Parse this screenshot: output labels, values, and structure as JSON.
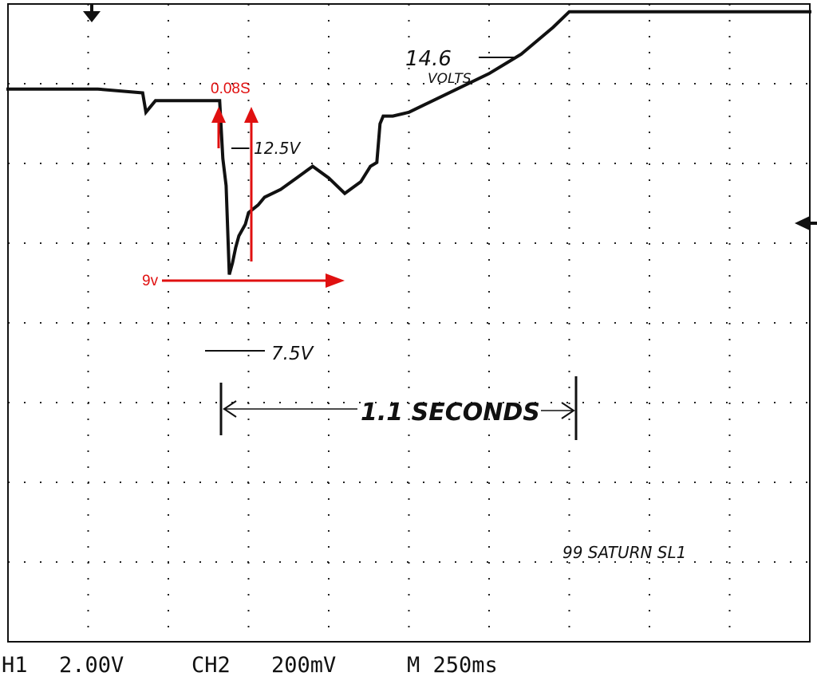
{
  "chart_data": {
    "type": "line",
    "title": "",
    "xlabel": "",
    "ylabel": "",
    "unit_x": "seconds",
    "unit_y": "volts",
    "xlim": [
      0,
      2.5
    ],
    "ylim": [
      -2,
      14.5
    ],
    "grid": true,
    "series": [
      {
        "x": [
          0,
          0.28,
          0.42,
          0.43,
          0.46,
          0.6,
          0.66,
          0.67,
          0.68,
          0.69,
          0.7,
          0.71,
          0.72,
          0.74,
          0.75,
          0.78,
          0.8,
          0.85,
          0.9,
          0.95,
          1.0,
          1.05,
          1.1,
          1.13,
          1.15,
          1.16,
          1.17,
          1.2,
          1.25,
          1.3,
          1.4,
          1.5,
          1.6,
          1.7,
          1.75,
          1.8,
          1.9,
          2.0,
          2.1,
          2.2,
          2.3,
          2.4,
          2.5
        ],
        "y": [
          12.3,
          12.3,
          12.2,
          11.7,
          12.0,
          12.0,
          12.0,
          10.5,
          9.8,
          7.5,
          7.8,
          8.2,
          8.5,
          8.8,
          9.1,
          9.3,
          9.5,
          9.7,
          10.0,
          10.3,
          10.0,
          9.6,
          9.9,
          10.3,
          10.4,
          11.4,
          11.6,
          11.6,
          11.7,
          11.9,
          12.3,
          12.7,
          13.2,
          13.9,
          14.3,
          14.3,
          14.3,
          14.3,
          14.3,
          14.3,
          14.3,
          14.3,
          14.3
        ]
      }
    ],
    "annotations": {
      "v_max": "14.6",
      "v_max_unit": "VOLTS",
      "v_rest": "12.5V",
      "v_min": "7.5V",
      "duration": "1.1 SECONDS",
      "vehicle": "99 SATURN SL1",
      "red_time": "0.08S",
      "red_voltage": "9v"
    }
  },
  "readout": {
    "ch1": "H1",
    "ch1_scale": "2.00V",
    "ch2": "CH2",
    "ch2_scale": "200mV",
    "timebase": "M 250ms"
  },
  "colors": {
    "trace": "#111111",
    "annotation_red": "#e01010",
    "grid_dots": "#222222"
  }
}
